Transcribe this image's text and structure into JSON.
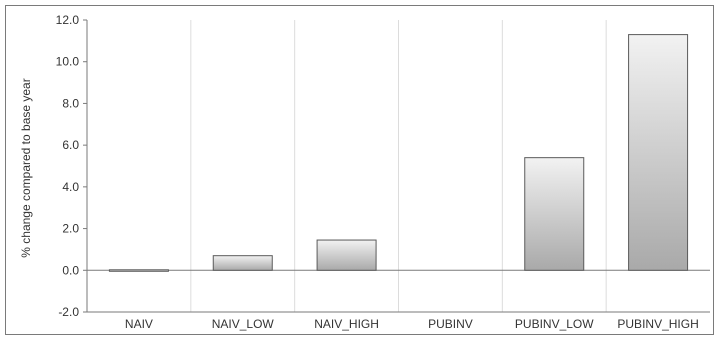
{
  "chart_data": {
    "type": "bar",
    "title": "",
    "xlabel": "",
    "ylabel": "% change compared to base year",
    "categories": [
      "NAIV",
      "NAIV_LOW",
      "NAIV_HIGH",
      "PUBINV",
      "PUBINV_LOW",
      "PUBINV_HIGH"
    ],
    "values": [
      -0.05,
      0.7,
      1.45,
      0.0,
      5.4,
      11.3
    ],
    "ylim": [
      -2.0,
      12.0
    ],
    "yticks": [
      -2.0,
      0.0,
      2.0,
      4.0,
      6.0,
      8.0,
      10.0,
      12.0
    ],
    "ytick_labels": [
      "-2.0",
      "0.0",
      "2.0",
      "4.0",
      "6.0",
      "8.0",
      "10.0",
      "12.0"
    ],
    "grid": "vertical",
    "legend": "none",
    "colors": {
      "bar_top": "#f2f2f2",
      "bar_bottom": "#a9a9a9",
      "bar_stroke": "#5a5a5a",
      "grid": "#dcdcdc",
      "axis": "#7a7a7a"
    }
  }
}
